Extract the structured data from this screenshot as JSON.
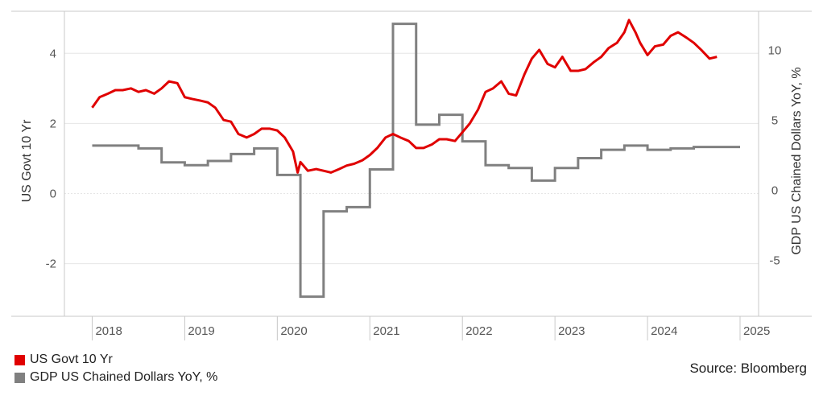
{
  "chart_data": {
    "type": "line",
    "title": "",
    "source": "Source: Bloomberg",
    "x_ticks": [
      "2018",
      "2019",
      "2020",
      "2021",
      "2022",
      "2023",
      "2024",
      "2025"
    ],
    "xlim": [
      2017.7,
      2025.2
    ],
    "left_axis": {
      "label": "US Govt 10 Yr",
      "ylim": [
        -3.5,
        5.2
      ],
      "ticks": [
        -2,
        0,
        2,
        4
      ]
    },
    "right_axis": {
      "label": "GDP US Chained Dollars YoY, %",
      "ylim": [
        -9.0,
        12.8
      ],
      "ticks": [
        -5,
        0,
        5,
        10
      ]
    },
    "grid": true,
    "legend_placement": "bottom-left",
    "series": [
      {
        "name": "US Govt 10 Yr",
        "axis": "left",
        "color": "#e00000",
        "points": [
          [
            2018.0,
            2.45
          ],
          [
            2018.08,
            2.75
          ],
          [
            2018.17,
            2.85
          ],
          [
            2018.25,
            2.95
          ],
          [
            2018.33,
            2.95
          ],
          [
            2018.42,
            3.0
          ],
          [
            2018.5,
            2.9
          ],
          [
            2018.58,
            2.95
          ],
          [
            2018.67,
            2.85
          ],
          [
            2018.75,
            3.0
          ],
          [
            2018.83,
            3.2
          ],
          [
            2018.92,
            3.15
          ],
          [
            2019.0,
            2.75
          ],
          [
            2019.08,
            2.7
          ],
          [
            2019.17,
            2.65
          ],
          [
            2019.25,
            2.6
          ],
          [
            2019.33,
            2.45
          ],
          [
            2019.42,
            2.1
          ],
          [
            2019.5,
            2.05
          ],
          [
            2019.58,
            1.7
          ],
          [
            2019.67,
            1.6
          ],
          [
            2019.75,
            1.7
          ],
          [
            2019.83,
            1.85
          ],
          [
            2019.92,
            1.85
          ],
          [
            2020.0,
            1.8
          ],
          [
            2020.08,
            1.6
          ],
          [
            2020.17,
            1.2
          ],
          [
            2020.22,
            0.6
          ],
          [
            2020.25,
            0.9
          ],
          [
            2020.33,
            0.65
          ],
          [
            2020.42,
            0.7
          ],
          [
            2020.5,
            0.65
          ],
          [
            2020.58,
            0.6
          ],
          [
            2020.67,
            0.7
          ],
          [
            2020.75,
            0.8
          ],
          [
            2020.83,
            0.85
          ],
          [
            2020.92,
            0.95
          ],
          [
            2021.0,
            1.1
          ],
          [
            2021.08,
            1.3
          ],
          [
            2021.17,
            1.6
          ],
          [
            2021.25,
            1.7
          ],
          [
            2021.33,
            1.6
          ],
          [
            2021.42,
            1.5
          ],
          [
            2021.5,
            1.3
          ],
          [
            2021.58,
            1.3
          ],
          [
            2021.67,
            1.4
          ],
          [
            2021.75,
            1.55
          ],
          [
            2021.83,
            1.55
          ],
          [
            2021.92,
            1.5
          ],
          [
            2022.0,
            1.75
          ],
          [
            2022.08,
            2.0
          ],
          [
            2022.17,
            2.4
          ],
          [
            2022.25,
            2.9
          ],
          [
            2022.33,
            3.0
          ],
          [
            2022.42,
            3.2
          ],
          [
            2022.5,
            2.85
          ],
          [
            2022.58,
            2.8
          ],
          [
            2022.67,
            3.4
          ],
          [
            2022.75,
            3.85
          ],
          [
            2022.83,
            4.1
          ],
          [
            2022.92,
            3.7
          ],
          [
            2023.0,
            3.6
          ],
          [
            2023.08,
            3.9
          ],
          [
            2023.17,
            3.5
          ],
          [
            2023.25,
            3.5
          ],
          [
            2023.33,
            3.55
          ],
          [
            2023.42,
            3.75
          ],
          [
            2023.5,
            3.9
          ],
          [
            2023.58,
            4.15
          ],
          [
            2023.67,
            4.3
          ],
          [
            2023.75,
            4.6
          ],
          [
            2023.8,
            4.95
          ],
          [
            2023.87,
            4.6
          ],
          [
            2023.92,
            4.3
          ],
          [
            2024.0,
            3.95
          ],
          [
            2024.08,
            4.2
          ],
          [
            2024.17,
            4.25
          ],
          [
            2024.25,
            4.5
          ],
          [
            2024.33,
            4.6
          ],
          [
            2024.42,
            4.45
          ],
          [
            2024.5,
            4.3
          ],
          [
            2024.58,
            4.1
          ],
          [
            2024.67,
            3.85
          ],
          [
            2024.75,
            3.9
          ]
        ]
      },
      {
        "name": "GDP US Chained Dollars YoY, %",
        "axis": "right",
        "color": "#808080",
        "step": true,
        "points": [
          [
            2018.0,
            3.2
          ],
          [
            2018.5,
            3.0
          ],
          [
            2018.75,
            2.0
          ],
          [
            2019.0,
            1.8
          ],
          [
            2019.25,
            2.1
          ],
          [
            2019.5,
            2.6
          ],
          [
            2019.75,
            3.0
          ],
          [
            2020.0,
            1.1
          ],
          [
            2020.25,
            -7.6
          ],
          [
            2020.5,
            -1.5
          ],
          [
            2020.75,
            -1.2
          ],
          [
            2021.0,
            1.5
          ],
          [
            2021.25,
            11.9
          ],
          [
            2021.5,
            4.7
          ],
          [
            2021.75,
            5.4
          ],
          [
            2022.0,
            3.5
          ],
          [
            2022.25,
            1.8
          ],
          [
            2022.5,
            1.6
          ],
          [
            2022.75,
            0.7
          ],
          [
            2023.0,
            1.6
          ],
          [
            2023.25,
            2.3
          ],
          [
            2023.5,
            2.9
          ],
          [
            2023.75,
            3.2
          ],
          [
            2024.0,
            2.9
          ],
          [
            2024.25,
            3.0
          ],
          [
            2024.5,
            3.1
          ],
          [
            2024.75,
            3.1
          ]
        ]
      }
    ]
  }
}
